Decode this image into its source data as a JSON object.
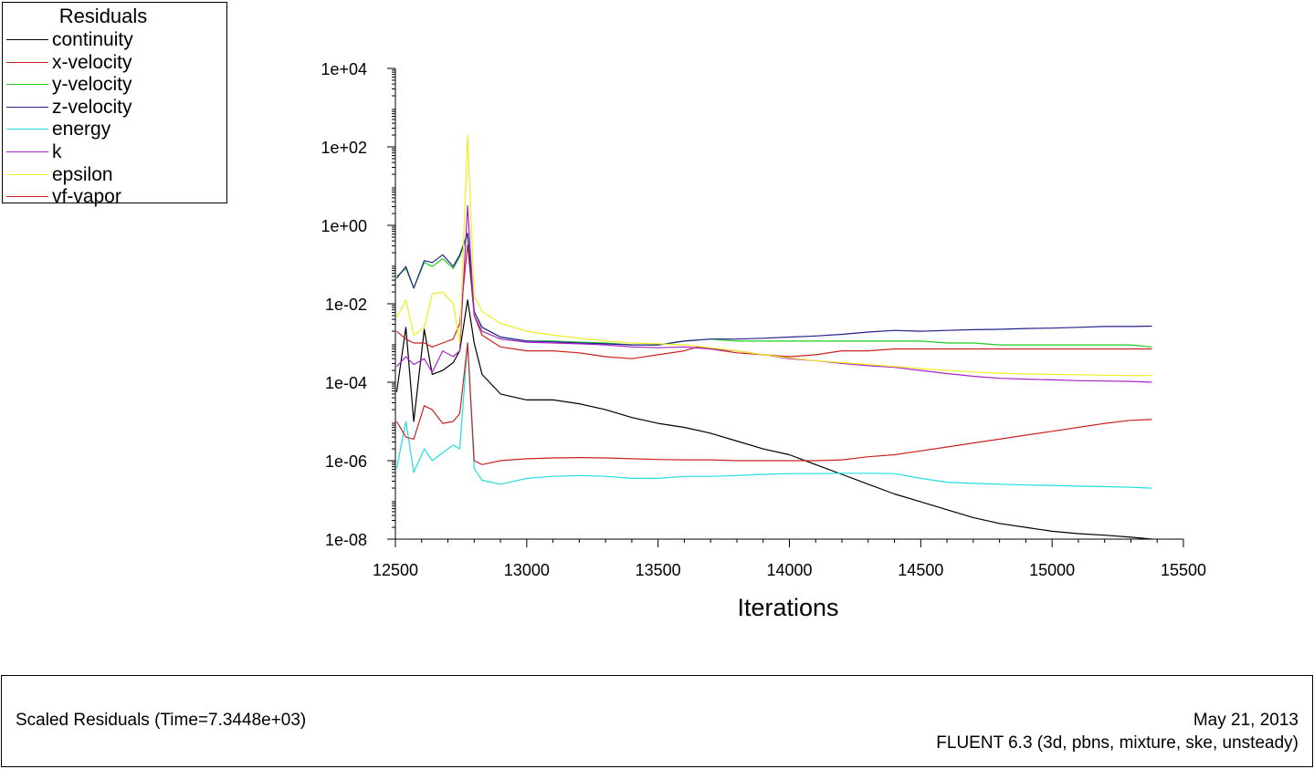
{
  "chart_data": {
    "type": "line",
    "title": "Residuals",
    "xlabel": "Iterations",
    "ylabel": "",
    "xlim": [
      12500,
      15500
    ],
    "ylim_log10": [
      -8,
      4
    ],
    "yscale": "log",
    "x_ticks": [
      12500,
      13000,
      13500,
      14000,
      14500,
      15000,
      15500
    ],
    "x_tick_labels": [
      "12500",
      "13000",
      "13500",
      "14000",
      "14500",
      "15000",
      "15500"
    ],
    "y_ticks_log10": [
      4,
      2,
      0,
      -2,
      -4,
      -6,
      -8
    ],
    "y_tick_labels": [
      "1e+04",
      "1e+02",
      "1e+00",
      "1e-02",
      "1e-04",
      "1e-06",
      "1e-08"
    ],
    "series": [
      {
        "name": "continuity",
        "color": "#000000",
        "x": [
          12505,
          12540,
          12570,
          12610,
          12640,
          12680,
          12720,
          12745,
          12775,
          12800,
          12830,
          12900,
          13000,
          13100,
          13200,
          13300,
          13400,
          13500,
          13600,
          13700,
          13800,
          13900,
          14000,
          14100,
          14200,
          14300,
          14400,
          14500,
          14600,
          14700,
          14800,
          14900,
          15000,
          15100,
          15200,
          15300,
          15380
        ],
        "y_log10": [
          -4.25,
          -2.6,
          -5,
          -2.65,
          -3.8,
          -3.7,
          -3.5,
          -3.2,
          -1.9,
          -3.0,
          -3.8,
          -4.3,
          -4.45,
          -4.45,
          -4.55,
          -4.7,
          -4.9,
          -5.05,
          -5.15,
          -5.3,
          -5.5,
          -5.7,
          -5.85,
          -6.1,
          -6.35,
          -6.6,
          -6.85,
          -7.05,
          -7.25,
          -7.45,
          -7.6,
          -7.7,
          -7.8,
          -7.86,
          -7.9,
          -7.95,
          -8.0
        ]
      },
      {
        "name": "x-velocity",
        "color": "#cc2222",
        "x": [
          12505,
          12540,
          12570,
          12610,
          12640,
          12680,
          12720,
          12745,
          12775,
          12800,
          12830,
          12900,
          13000,
          13100,
          13200,
          13300,
          13400,
          13500,
          13600,
          13650,
          13700,
          13800,
          13900,
          14000,
          14100,
          14200,
          14300,
          14400,
          14500,
          14600,
          14700,
          14800,
          14900,
          15000,
          15100,
          15200,
          15300,
          15380
        ],
        "y_log10": [
          -2.7,
          -2.9,
          -3.0,
          -3.0,
          -3.1,
          -3.0,
          -2.9,
          -2.5,
          -0.5,
          -2.3,
          -2.8,
          -3.1,
          -3.2,
          -3.2,
          -3.25,
          -3.35,
          -3.4,
          -3.3,
          -3.2,
          -3.1,
          -3.15,
          -3.25,
          -3.3,
          -3.35,
          -3.3,
          -3.2,
          -3.2,
          -3.15,
          -3.15,
          -3.15,
          -3.15,
          -3.15,
          -3.15,
          -3.15,
          -3.15,
          -3.15,
          -3.15,
          -3.15
        ]
      },
      {
        "name": "y-velocity",
        "color": "#22cc22",
        "x": [
          12505,
          12540,
          12570,
          12610,
          12640,
          12680,
          12720,
          12745,
          12775,
          12800,
          12830,
          12900,
          13000,
          13100,
          13200,
          13300,
          13400,
          13500,
          13600,
          13700,
          13800,
          13900,
          14000,
          14100,
          14200,
          14300,
          14400,
          14500,
          14600,
          14700,
          14800,
          14900,
          15000,
          15100,
          15200,
          15300,
          15380
        ],
        "y_log10": [
          -1.3,
          -1.1,
          -1.6,
          -0.95,
          -1.05,
          -0.85,
          -1.1,
          -0.8,
          -0.25,
          -2.2,
          -2.6,
          -2.85,
          -2.95,
          -2.95,
          -2.98,
          -3.0,
          -3.05,
          -3.05,
          -2.95,
          -2.9,
          -2.95,
          -2.95,
          -2.95,
          -2.95,
          -2.95,
          -2.95,
          -2.95,
          -2.95,
          -3.0,
          -3.0,
          -3.05,
          -3.05,
          -3.05,
          -3.05,
          -3.05,
          -3.05,
          -3.1
        ]
      },
      {
        "name": "z-velocity",
        "color": "#22228a",
        "x": [
          12505,
          12540,
          12570,
          12610,
          12640,
          12680,
          12720,
          12745,
          12775,
          12800,
          12830,
          12900,
          13000,
          13100,
          13200,
          13300,
          13400,
          13500,
          13600,
          13700,
          13800,
          13900,
          14000,
          14100,
          14200,
          14300,
          14400,
          14500,
          14600,
          14700,
          14800,
          14900,
          15000,
          15100,
          15200,
          15300,
          15380
        ],
        "y_log10": [
          -1.35,
          -1.05,
          -1.6,
          -0.9,
          -0.95,
          -0.75,
          -1.05,
          -0.75,
          -0.2,
          -2.2,
          -2.6,
          -2.85,
          -2.95,
          -2.97,
          -3.0,
          -3.02,
          -3.05,
          -3.05,
          -2.95,
          -2.9,
          -2.9,
          -2.88,
          -2.85,
          -2.82,
          -2.78,
          -2.72,
          -2.68,
          -2.7,
          -2.68,
          -2.66,
          -2.65,
          -2.63,
          -2.62,
          -2.6,
          -2.58,
          -2.58,
          -2.57
        ]
      },
      {
        "name": "energy",
        "color": "#22dddd",
        "x": [
          12505,
          12540,
          12570,
          12610,
          12640,
          12680,
          12720,
          12745,
          12775,
          12800,
          12830,
          12900,
          13000,
          13100,
          13200,
          13300,
          13400,
          13500,
          13600,
          13700,
          13800,
          13900,
          14000,
          14100,
          14200,
          14300,
          14400,
          14500,
          14600,
          14700,
          14800,
          14900,
          15000,
          15100,
          15200,
          15300,
          15380
        ],
        "y_log10": [
          -6.2,
          -5.0,
          -6.3,
          -5.7,
          -6.0,
          -5.8,
          -5.6,
          -5.7,
          -3.0,
          -6.2,
          -6.5,
          -6.6,
          -6.45,
          -6.4,
          -6.38,
          -6.4,
          -6.45,
          -6.45,
          -6.4,
          -6.4,
          -6.38,
          -6.35,
          -6.33,
          -6.33,
          -6.32,
          -6.32,
          -6.33,
          -6.45,
          -6.55,
          -6.58,
          -6.6,
          -6.62,
          -6.63,
          -6.65,
          -6.66,
          -6.68,
          -6.7
        ]
      },
      {
        "name": "k",
        "color": "#aa22cc",
        "x": [
          12505,
          12540,
          12570,
          12610,
          12640,
          12680,
          12720,
          12745,
          12775,
          12800,
          12830,
          12900,
          13000,
          13100,
          13200,
          13300,
          13400,
          13500,
          13600,
          13700,
          13800,
          13900,
          14000,
          14100,
          14200,
          14300,
          14400,
          14500,
          14600,
          14700,
          14800,
          14900,
          15000,
          15100,
          15200,
          15300,
          15380
        ],
        "y_log10": [
          -3.6,
          -3.35,
          -3.55,
          -3.4,
          -3.75,
          -3.2,
          -3.35,
          -3.2,
          0.5,
          -2.3,
          -2.7,
          -2.9,
          -2.98,
          -3.0,
          -3.02,
          -3.05,
          -3.1,
          -3.12,
          -3.1,
          -3.15,
          -3.2,
          -3.3,
          -3.4,
          -3.45,
          -3.52,
          -3.58,
          -3.62,
          -3.7,
          -3.78,
          -3.85,
          -3.9,
          -3.92,
          -3.94,
          -3.96,
          -3.97,
          -3.98,
          -4.0
        ]
      },
      {
        "name": "epsilon",
        "color": "#eeee22",
        "x": [
          12505,
          12540,
          12570,
          12610,
          12640,
          12680,
          12720,
          12745,
          12775,
          12800,
          12830,
          12900,
          13000,
          13100,
          13200,
          13300,
          13400,
          13500,
          13600,
          13700,
          13800,
          13900,
          14000,
          14100,
          14200,
          14300,
          14400,
          14500,
          14600,
          14700,
          14800,
          14900,
          15000,
          15100,
          15200,
          15300,
          15380
        ],
        "y_log10": [
          -2.35,
          -1.9,
          -2.8,
          -2.6,
          -1.75,
          -1.7,
          -2.0,
          -3.0,
          2.3,
          -1.8,
          -2.2,
          -2.5,
          -2.7,
          -2.8,
          -2.88,
          -2.95,
          -3.0,
          -3.02,
          -3.05,
          -3.12,
          -3.2,
          -3.3,
          -3.38,
          -3.45,
          -3.5,
          -3.55,
          -3.6,
          -3.65,
          -3.7,
          -3.74,
          -3.77,
          -3.79,
          -3.8,
          -3.81,
          -3.82,
          -3.83,
          -3.83
        ]
      },
      {
        "name": "vf-vapor",
        "color": "#cc2222",
        "x": [
          12505,
          12540,
          12570,
          12610,
          12640,
          12680,
          12720,
          12745,
          12775,
          12800,
          12830,
          12900,
          13000,
          13100,
          13200,
          13300,
          13400,
          13500,
          13600,
          13700,
          13800,
          13900,
          14000,
          14100,
          14200,
          14300,
          14400,
          14500,
          14600,
          14700,
          14800,
          14900,
          15000,
          15100,
          15200,
          15300,
          15380
        ],
        "y_log10": [
          -5.0,
          -5.4,
          -5.45,
          -4.6,
          -4.7,
          -5.05,
          -5.0,
          -4.8,
          -3.0,
          -6.0,
          -6.1,
          -6.0,
          -5.95,
          -5.93,
          -5.92,
          -5.93,
          -5.95,
          -5.97,
          -5.98,
          -5.98,
          -6.0,
          -6.0,
          -6.0,
          -6.0,
          -5.98,
          -5.9,
          -5.85,
          -5.75,
          -5.65,
          -5.55,
          -5.45,
          -5.35,
          -5.25,
          -5.15,
          -5.05,
          -4.97,
          -4.95
        ]
      }
    ]
  },
  "legend": {
    "title": "Residuals",
    "items": [
      "continuity",
      "x-velocity",
      "y-velocity",
      "z-velocity",
      "energy",
      "k",
      "epsilon",
      "vf-vapor"
    ]
  },
  "footer": {
    "description": "Scaled Residuals  (Time=7.3448e+03)",
    "date": "May 21, 2013",
    "solver": "FLUENT 6.3 (3d, pbns, mixture, ske, unsteady)"
  }
}
